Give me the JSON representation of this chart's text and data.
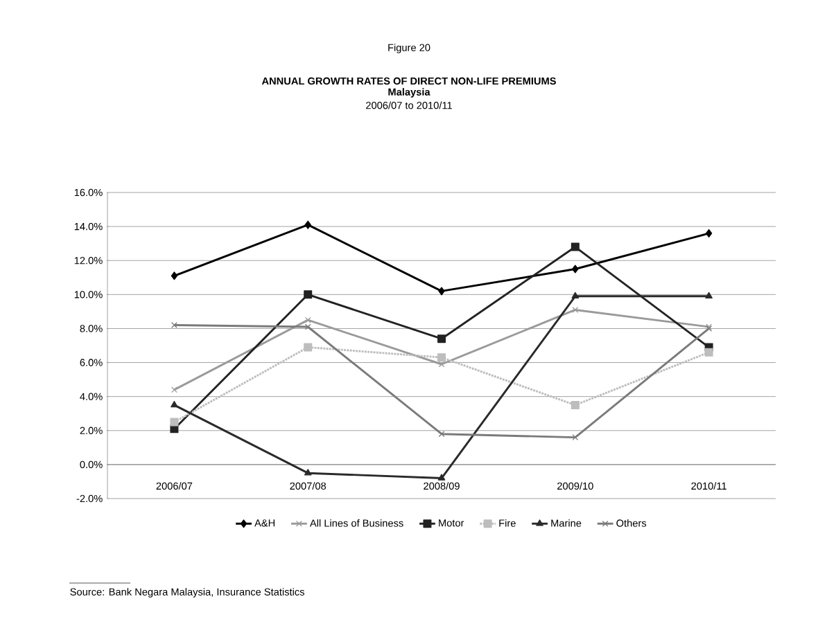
{
  "chart_data": {
    "type": "line",
    "title": "ANNUAL GROWTH RATES OF DIRECT NON-LIFE PREMIUMS",
    "subtitle": "Malaysia",
    "annotations": [
      "Figure 20",
      "2006/07 to 2010/11",
      "Source: Bank Negara Malaysia, Insurance Statistics"
    ],
    "categories": [
      "2006/07",
      "2007/08",
      "2008/09",
      "2009/10",
      "2010/11"
    ],
    "series": [
      {
        "name": "A&H",
        "color": "#000000",
        "marker": "diamond",
        "line_style": "solid",
        "values": [
          11.1,
          14.1,
          10.2,
          11.5,
          13.6
        ]
      },
      {
        "name": "All Lines of Business",
        "color": "#9a9a9a",
        "marker": "cross",
        "line_style": "solid",
        "values": [
          4.4,
          8.5,
          5.9,
          9.1,
          8.1
        ]
      },
      {
        "name": "Motor",
        "color": "#222222",
        "marker": "square",
        "line_style": "solid",
        "values": [
          2.1,
          10.0,
          7.4,
          12.8,
          6.9
        ]
      },
      {
        "name": "Fire",
        "color": "#bdbdbd",
        "marker": "square",
        "line_style": "dotted",
        "values": [
          2.5,
          6.9,
          6.3,
          3.5,
          6.6
        ]
      },
      {
        "name": "Marine",
        "color": "#2a2a2a",
        "marker": "triangle",
        "line_style": "solid",
        "values": [
          3.5,
          -0.5,
          -0.8,
          9.9,
          9.9
        ]
      },
      {
        "name": "Others",
        "color": "#7a7a7a",
        "marker": "cross",
        "line_style": "solid",
        "values": [
          8.2,
          8.1,
          1.8,
          1.6,
          8.0
        ]
      }
    ],
    "ylim": [
      -2,
      16
    ],
    "yticks": [
      {
        "value": -2,
        "label": "-2.0%"
      },
      {
        "value": 0,
        "label": "0.0%"
      },
      {
        "value": 2,
        "label": "2.0%"
      },
      {
        "value": 4,
        "label": "4.0%"
      },
      {
        "value": 6,
        "label": "6.0%"
      },
      {
        "value": 8,
        "label": "8.0%"
      },
      {
        "value": 10,
        "label": "10.0%"
      },
      {
        "value": 12,
        "label": "12.0%"
      },
      {
        "value": 14,
        "label": "14.0%"
      },
      {
        "value": 16,
        "label": "16.0%"
      }
    ],
    "grid": "y",
    "legend": "bottom"
  }
}
